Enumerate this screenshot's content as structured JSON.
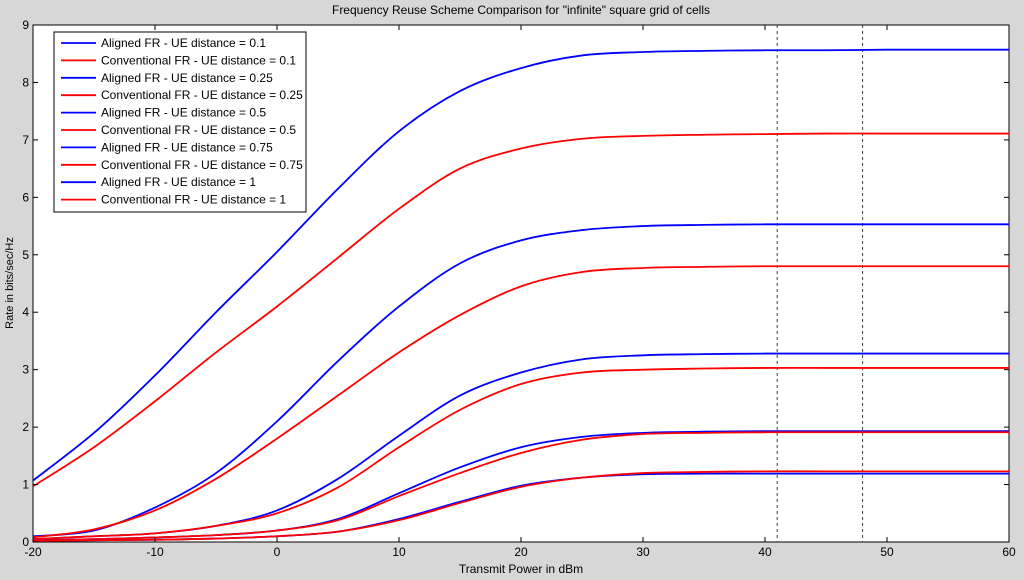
{
  "chart_data": {
    "type": "line",
    "title": "Frequency Reuse Scheme Comparison for \"infinite\" square grid of cells",
    "xlabel": "Transmit Power in dBm",
    "ylabel": "Rate in bits/sec/Hz",
    "xlim": [
      -20,
      60
    ],
    "ylim": [
      0,
      9
    ],
    "xticks": [
      "-20",
      "-10",
      "0",
      "10",
      "20",
      "30",
      "40",
      "50",
      "60"
    ],
    "yticks": [
      "0",
      "1",
      "2",
      "3",
      "4",
      "5",
      "6",
      "7",
      "8",
      "9"
    ],
    "grid": false,
    "legend_position": "top-left",
    "vertical_reference_lines": [
      41,
      48
    ],
    "colors": {
      "aligned": "#0000ff",
      "conventional": "#ff0000",
      "refline": "#404040"
    },
    "x": [
      -20,
      -15,
      -10,
      -5,
      0,
      5,
      10,
      15,
      20,
      25,
      30,
      35,
      40,
      45,
      50,
      55,
      60
    ],
    "series": [
      {
        "name": "Aligned FR - UE distance = 0.1",
        "color": "#0000ff",
        "values": [
          1.07,
          1.9,
          2.9,
          4.0,
          5.05,
          6.15,
          7.15,
          7.85,
          8.25,
          8.47,
          8.53,
          8.55,
          8.56,
          8.56,
          8.57,
          8.57,
          8.57
        ]
      },
      {
        "name": "Conventional FR - UE distance = 0.1",
        "color": "#ff0000",
        "values": [
          0.97,
          1.65,
          2.45,
          3.3,
          4.1,
          4.95,
          5.8,
          6.5,
          6.85,
          7.02,
          7.07,
          7.09,
          7.1,
          7.11,
          7.11,
          7.11,
          7.11
        ]
      },
      {
        "name": "Aligned FR - UE distance = 0.25",
        "color": "#0000ff",
        "values": [
          0.1,
          0.2,
          0.6,
          1.2,
          2.1,
          3.15,
          4.1,
          4.85,
          5.25,
          5.43,
          5.5,
          5.52,
          5.53,
          5.53,
          5.53,
          5.53,
          5.53
        ]
      },
      {
        "name": "Conventional FR - UE distance = 0.25",
        "color": "#ff0000",
        "values": [
          0.08,
          0.22,
          0.55,
          1.1,
          1.8,
          2.55,
          3.3,
          3.95,
          4.45,
          4.7,
          4.77,
          4.79,
          4.8,
          4.8,
          4.8,
          4.8,
          4.8
        ]
      },
      {
        "name": "Aligned FR - UE distance = 0.5",
        "color": "#0000ff",
        "values": [
          0.05,
          0.1,
          0.15,
          0.28,
          0.55,
          1.1,
          1.85,
          2.55,
          2.95,
          3.18,
          3.25,
          3.27,
          3.28,
          3.28,
          3.28,
          3.28,
          3.28
        ]
      },
      {
        "name": "Conventional FR - UE distance = 0.5",
        "color": "#ff0000",
        "values": [
          0.05,
          0.1,
          0.15,
          0.28,
          0.5,
          0.95,
          1.65,
          2.3,
          2.75,
          2.95,
          3.0,
          3.02,
          3.03,
          3.03,
          3.03,
          3.03,
          3.03
        ]
      },
      {
        "name": "Aligned FR - UE distance = 0.75",
        "color": "#0000ff",
        "values": [
          0.03,
          0.05,
          0.08,
          0.12,
          0.2,
          0.4,
          0.85,
          1.3,
          1.65,
          1.83,
          1.9,
          1.92,
          1.93,
          1.93,
          1.93,
          1.93,
          1.93
        ]
      },
      {
        "name": "Conventional FR - UE distance = 0.75",
        "color": "#ff0000",
        "values": [
          0.03,
          0.05,
          0.08,
          0.12,
          0.2,
          0.38,
          0.8,
          1.2,
          1.55,
          1.78,
          1.88,
          1.9,
          1.91,
          1.91,
          1.91,
          1.91,
          1.91
        ]
      },
      {
        "name": "Aligned FR - UE distance = 1",
        "color": "#0000ff",
        "values": [
          0.02,
          0.03,
          0.04,
          0.06,
          0.1,
          0.18,
          0.4,
          0.7,
          0.98,
          1.12,
          1.18,
          1.19,
          1.19,
          1.19,
          1.19,
          1.19,
          1.19
        ]
      },
      {
        "name": "Conventional FR - UE distance = 1",
        "color": "#ff0000",
        "values": [
          0.02,
          0.03,
          0.04,
          0.06,
          0.1,
          0.18,
          0.38,
          0.68,
          0.96,
          1.12,
          1.2,
          1.22,
          1.23,
          1.23,
          1.23,
          1.23,
          1.23
        ]
      }
    ]
  }
}
